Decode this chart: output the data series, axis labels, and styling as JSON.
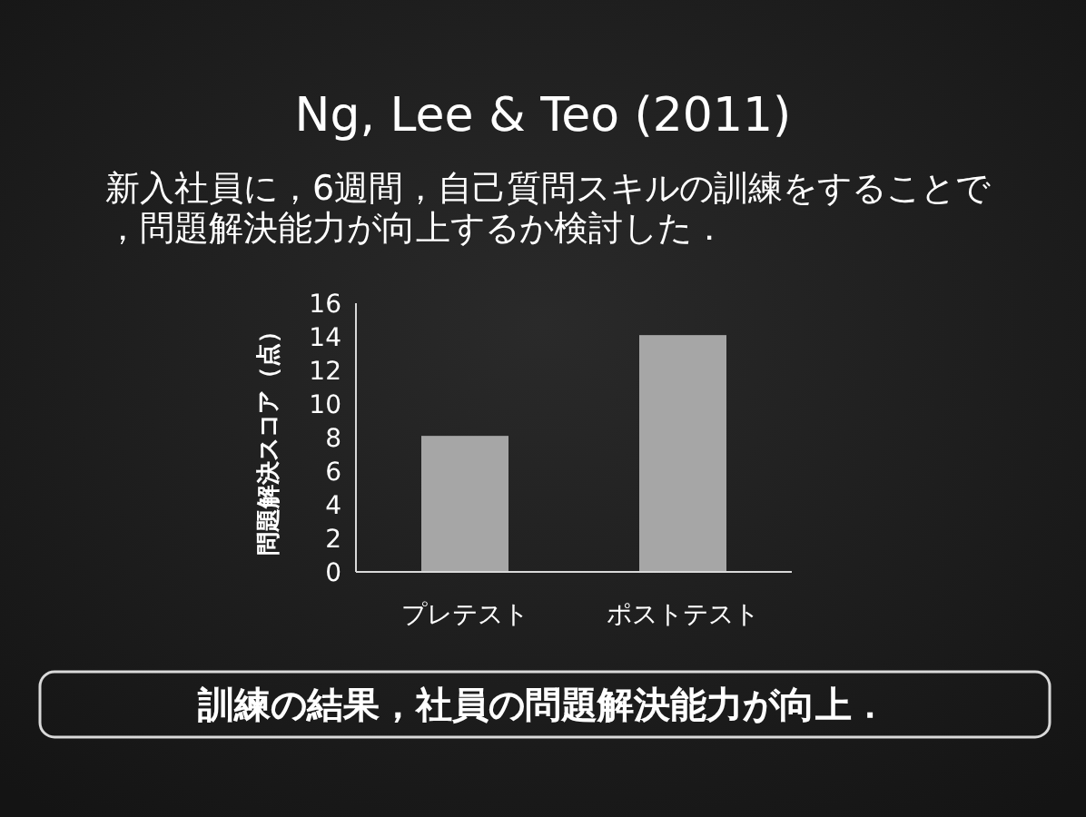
{
  "chart_data": {
    "type": "bar",
    "title": "Ng, Lee & Teo (2011)",
    "subtitle": "新入社員に，6週間，自己質問スキルの訓練をすることで，問題解決能力が向上するか検討した．",
    "ylabel": "問題解決スコア（点）",
    "categories": [
      "プレテスト",
      "ポストテスト"
    ],
    "values": [
      8.1,
      14.1
    ],
    "color": "#a6a6a6",
    "ylim": [
      0,
      16
    ],
    "yticks": [
      0,
      2,
      4,
      6,
      8,
      10,
      12,
      14,
      16
    ],
    "annotations": [
      "訓練の結果，社員の問題解決能力が向上．"
    ]
  }
}
